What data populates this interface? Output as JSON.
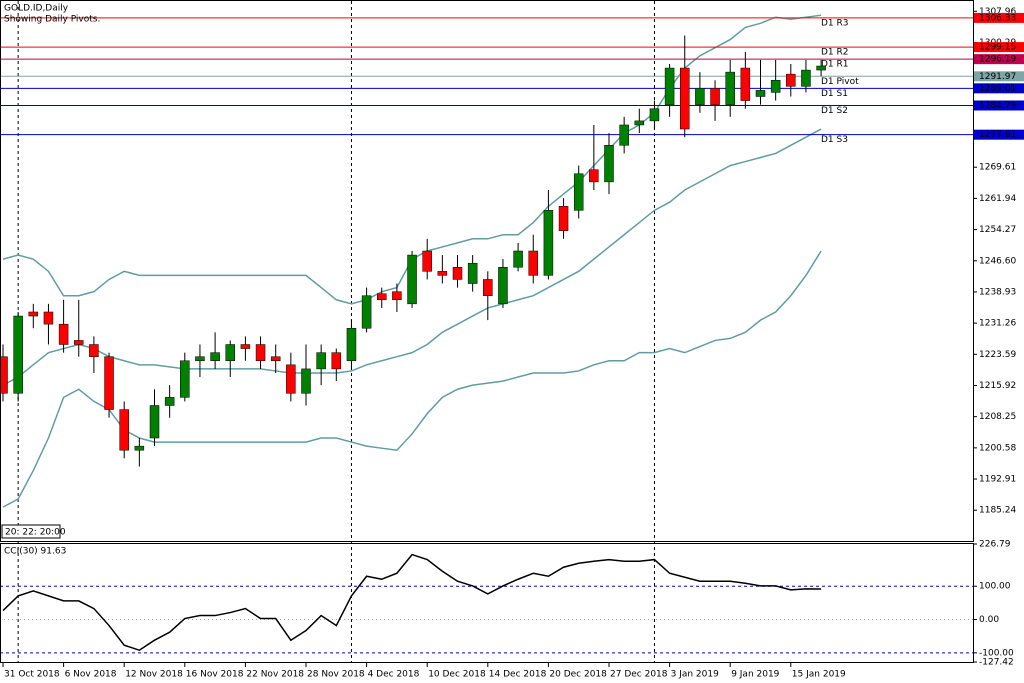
{
  "chart_data": [
    {
      "type": "candlestick",
      "title": "GOLD.ID,Daily",
      "subtitle": "Showing Daily Pivots.",
      "time_label": "20: 22: 20:00",
      "categories": [
        "31 Oct 2018",
        null,
        null,
        null,
        "6 Nov 2018",
        null,
        null,
        null,
        "12 Nov 2018",
        null,
        null,
        null,
        "16 Nov 2018",
        null,
        null,
        null,
        "22 Nov 2018",
        null,
        null,
        null,
        "28 Nov 2018",
        null,
        null,
        null,
        "4 Dec 2018",
        null,
        null,
        null,
        "10 Dec 2018",
        null,
        null,
        null,
        "14 Dec 2018",
        null,
        null,
        null,
        "20 Dec 2018",
        null,
        null,
        null,
        "27 Dec 2018",
        null,
        null,
        null,
        "3 Jan 2019",
        null,
        null,
        null,
        "9 Jan 2019",
        null,
        null,
        null,
        "15 Jan 2019",
        null,
        null
      ],
      "open": [
        1223,
        1214,
        1234,
        1234,
        1231,
        1227,
        1226,
        1223,
        1210,
        1200,
        1203,
        1211,
        1213,
        1222,
        1222,
        1222,
        1226,
        1226,
        1223,
        1221,
        1214,
        1220,
        1224,
        1222,
        1230,
        1238.5,
        1239,
        1236,
        1249,
        1244,
        1245,
        1241,
        1242,
        1236,
        1245,
        1249,
        1243,
        1260,
        1259,
        1269,
        1266,
        1275,
        1280,
        1281,
        1285,
        1294,
        1285,
        1289,
        1285,
        1294,
        1287,
        1288,
        1292.5,
        1289.5,
        1293.5
      ],
      "high": [
        1226,
        1234,
        1236,
        1236,
        1237,
        1237,
        1228,
        1224,
        1212,
        1203,
        1215,
        1216,
        1224,
        1226,
        1229,
        1227,
        1228,
        1228,
        1226,
        1224,
        1226,
        1226,
        1225,
        1232,
        1240,
        1240,
        1241,
        1249,
        1252,
        1248,
        1248,
        1248,
        1244,
        1247,
        1251,
        1253,
        1264,
        1262,
        1270,
        1280,
        1278,
        1282,
        1284,
        1286,
        1295,
        1302,
        1293,
        1291,
        1296,
        1298,
        1296,
        1296,
        1295,
        1296,
        1296
      ],
      "low": [
        1212,
        1212,
        1230,
        1226,
        1224,
        1223,
        1219,
        1208,
        1198,
        1196,
        1201,
        1208,
        1212,
        1218,
        1220,
        1218,
        1222,
        1220,
        1219,
        1212,
        1211,
        1216,
        1217,
        1220,
        1229,
        1235,
        1234,
        1235,
        1242,
        1241,
        1240,
        1239,
        1232,
        1235,
        1244,
        1241,
        1242,
        1252,
        1257,
        1264,
        1263,
        1273,
        1278,
        1279,
        1282,
        1277,
        1283,
        1281,
        1282,
        1284,
        1285,
        1286,
        1287,
        1288,
        1292
      ],
      "close": [
        1214,
        1233,
        1233,
        1231,
        1226,
        1226,
        1223,
        1210,
        1200,
        1201,
        1211,
        1213,
        1222,
        1223,
        1224,
        1226,
        1225,
        1222,
        1222,
        1214,
        1220,
        1224,
        1220,
        1230,
        1238,
        1237,
        1237,
        1248,
        1244,
        1243,
        1242,
        1246,
        1238,
        1245,
        1249,
        1243,
        1259,
        1254,
        1268,
        1266,
        1275,
        1280,
        1281,
        1284,
        1294,
        1279,
        1289,
        1285,
        1293,
        1286,
        1288.5,
        1291,
        1289.5,
        1293.5,
        1294.5
      ],
      "up_color": "#008000",
      "down_color": "#ff0000",
      "bands": {
        "color": "#5f9ea0",
        "upper": [
          1247,
          1248,
          1247,
          1244,
          1238,
          1238,
          1239,
          1242,
          1244,
          1243,
          1243,
          1243,
          1243,
          1243,
          1243,
          1243,
          1243,
          1243,
          1243,
          1243,
          1243,
          1240,
          1237,
          1236,
          1237,
          1239,
          1240,
          1247,
          1249,
          1250,
          1251,
          1252,
          1252,
          1253,
          1253,
          1256,
          1260,
          1263,
          1266,
          1270,
          1274,
          1278,
          1280,
          1283,
          1289,
          1294,
          1297,
          1299,
          1301,
          1304,
          1305,
          1306.5,
          1306,
          1306.5,
          1307
        ],
        "middle": [
          1216,
          1218,
          1221,
          1224,
          1225,
          1226,
          1225,
          1223,
          1222,
          1221,
          1221,
          1220.5,
          1220,
          1220,
          1220,
          1220,
          1220,
          1220,
          1219.5,
          1219,
          1219,
          1219,
          1219,
          1219.5,
          1221,
          1222,
          1223,
          1224,
          1226,
          1229,
          1231,
          1233,
          1235,
          1236,
          1237,
          1238,
          1240,
          1242,
          1244,
          1247,
          1250,
          1253,
          1256,
          1259,
          1261,
          1264,
          1266,
          1268,
          1270,
          1271,
          1272,
          1273,
          1275,
          1277,
          1279
        ],
        "lower": [
          1186,
          1188,
          1195,
          1203,
          1213,
          1215,
          1212,
          1210,
          1205,
          1203,
          1202,
          1202,
          1202,
          1202,
          1202,
          1202,
          1202,
          1202,
          1202,
          1202,
          1202,
          1203,
          1203,
          1202,
          1201,
          1200.5,
          1200,
          1204,
          1209,
          1213,
          1215,
          1216,
          1216.5,
          1217,
          1218,
          1219,
          1219,
          1219,
          1219.5,
          1221,
          1222,
          1222,
          1224,
          1224,
          1225,
          1224,
          1225.5,
          1227,
          1227.5,
          1229,
          1232,
          1234,
          1238,
          1243,
          1249
        ]
      },
      "pivots": [
        {
          "label": "D1 R3",
          "value": 1306.33,
          "color": "#ff0000"
        },
        {
          "label": "D1 R2",
          "value": 1299.15,
          "color": "#ff0000"
        },
        {
          "label": "D1 R1",
          "value": 1296.19,
          "color": "#c0004f"
        },
        {
          "label": "D1 Pivot",
          "value": 1291.97,
          "color": "#7fa6a6"
        },
        {
          "label": "D1 S1",
          "value": 1289.01,
          "color": "#0000cd"
        },
        {
          "label": "D1 S2",
          "value": 1284.79,
          "color": "#0000cd"
        },
        {
          "label": "D1 S3",
          "value": 1277.61,
          "color": "#0000cd"
        }
      ],
      "ylim": [
        1177.67,
        1310.49
      ],
      "yticks": [
        1185.24,
        1192.91,
        1200.58,
        1208.25,
        1215.92,
        1223.59,
        1231.26,
        1238.93,
        {
          "value": 1246.6,
          "label": "1246.60"
        },
        1254.27,
        1261.94,
        1269.61,
        1300.29,
        1307.96
      ]
    },
    {
      "type": "line",
      "title": "CCI(30) 91.63",
      "color": "#000000",
      "values": [
        27,
        71,
        86,
        71,
        56,
        56,
        33,
        -18,
        -77,
        -92,
        -62,
        -38,
        3,
        12,
        12,
        21,
        33,
        3,
        3,
        -62,
        -33,
        12,
        -18,
        71,
        130,
        121,
        139,
        195,
        180,
        145,
        115,
        101,
        77,
        101,
        121,
        139,
        130,
        157,
        169,
        175,
        180,
        175,
        175,
        180,
        139,
        127,
        115,
        115,
        115,
        109,
        101,
        101,
        89,
        92,
        91.63
      ],
      "ylim": [
        -127.42,
        226.79
      ],
      "yticks": [
        226.79,
        {
          "value": 100,
          "label": "100.00"
        },
        {
          "value": 0,
          "label": "0.00"
        },
        {
          "value": -100,
          "label": "-100.00"
        },
        -127.42
      ],
      "levels": [
        100,
        0,
        -100
      ]
    }
  ]
}
